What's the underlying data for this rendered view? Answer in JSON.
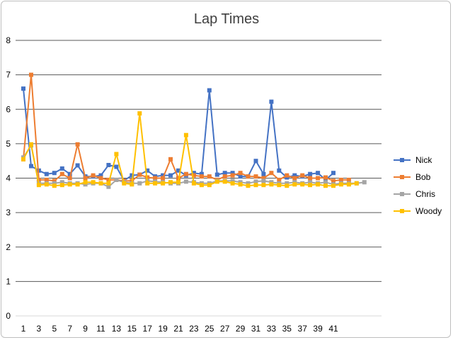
{
  "chart_data": {
    "type": "line",
    "title": "Lap Times",
    "xlabel": "",
    "ylabel": "",
    "ylim": [
      0,
      8
    ],
    "yticks": [
      "0",
      "1",
      "2",
      "3",
      "4",
      "5",
      "6",
      "7",
      "8"
    ],
    "xlim": [
      1,
      45
    ],
    "xticks": [
      "1",
      "3",
      "5",
      "7",
      "9",
      "11",
      "13",
      "15",
      "17",
      "19",
      "21",
      "23",
      "25",
      "27",
      "29",
      "31",
      "33",
      "35",
      "37",
      "39",
      "41"
    ],
    "grid": true,
    "legend": "right",
    "series": [
      {
        "name": "Nick",
        "color": "#4472c4",
        "values": [
          6.6,
          4.35,
          4.22,
          4.12,
          4.15,
          4.28,
          4.12,
          4.37,
          4.05,
          4.05,
          4.08,
          4.38,
          4.33,
          3.93,
          4.08,
          4.1,
          4.22,
          4.05,
          4.08,
          4.08,
          4.22,
          4.08,
          4.15,
          4.12,
          6.55,
          4.1,
          4.15,
          4.15,
          4.05,
          4.05,
          4.5,
          4.12,
          6.22,
          4.22,
          4.02,
          4.08,
          4.05,
          4.12,
          4.15,
          3.95,
          4.15
        ]
      },
      {
        "name": "Bob",
        "color": "#ed7d31",
        "values": [
          4.55,
          7.0,
          3.95,
          3.95,
          3.92,
          4.12,
          4.0,
          4.98,
          4.0,
          4.08,
          4.0,
          3.95,
          3.95,
          3.92,
          3.92,
          4.1,
          4.02,
          4.0,
          4.0,
          4.55,
          4.0,
          4.12,
          4.08,
          4.05,
          4.05,
          3.95,
          4.05,
          4.08,
          4.15,
          4.05,
          4.05,
          4.0,
          4.15,
          3.95,
          4.08,
          4.0,
          4.08,
          4.0,
          4.0,
          4.02,
          3.92,
          3.95,
          3.95
        ]
      },
      {
        "name": "Chris",
        "color": "#a5a5a5",
        "values": [
          4.6,
          4.95,
          3.85,
          3.85,
          3.85,
          3.88,
          3.85,
          3.85,
          3.82,
          3.85,
          3.85,
          3.75,
          3.95,
          3.88,
          3.85,
          3.85,
          3.92,
          3.9,
          3.88,
          3.85,
          3.85,
          3.9,
          3.88,
          3.85,
          3.85,
          3.92,
          3.92,
          3.92,
          3.88,
          3.85,
          3.9,
          3.92,
          3.88,
          3.85,
          3.85,
          3.88,
          3.85,
          3.88,
          3.85,
          3.88,
          3.82,
          3.85,
          3.85,
          3.85,
          3.88
        ]
      },
      {
        "name": "Woody",
        "color": "#ffc000",
        "values": [
          4.55,
          4.98,
          3.8,
          3.82,
          3.78,
          3.8,
          3.82,
          3.82,
          3.88,
          3.88,
          3.85,
          3.85,
          4.7,
          3.85,
          3.82,
          5.88,
          3.85,
          3.85,
          3.85,
          3.88,
          3.88,
          5.25,
          3.85,
          3.8,
          3.8,
          3.9,
          3.9,
          3.85,
          3.82,
          3.78,
          3.8,
          3.8,
          3.82,
          3.8,
          3.78,
          3.82,
          3.82,
          3.8,
          3.82,
          3.78,
          3.78,
          3.82,
          3.82,
          3.85
        ]
      }
    ]
  }
}
